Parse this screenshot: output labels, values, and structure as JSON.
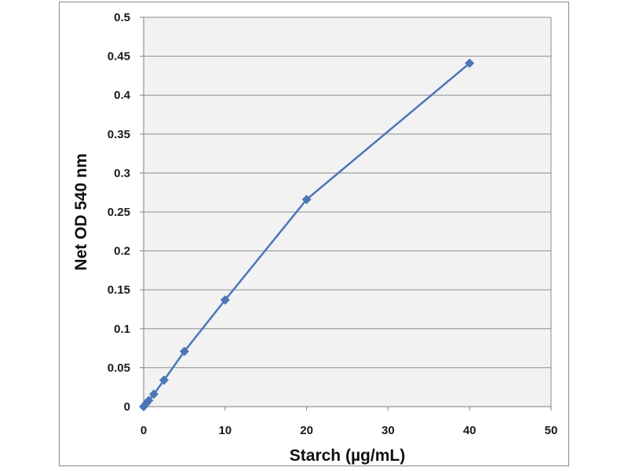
{
  "chart_data": {
    "type": "line",
    "title": "",
    "xlabel": "Starch (µg/mL)",
    "ylabel": "Net OD 540 nm",
    "xlim": [
      0,
      50
    ],
    "ylim": [
      0,
      0.5
    ],
    "x_ticks": [
      0,
      10,
      20,
      30,
      40,
      50
    ],
    "y_ticks": [
      0,
      0.05,
      0.1,
      0.15,
      0.2,
      0.25,
      0.3,
      0.35,
      0.4,
      0.45,
      0.5
    ],
    "x_tick_labels": [
      "0",
      "10",
      "20",
      "30",
      "40",
      "50"
    ],
    "y_tick_labels": [
      "0",
      "0.05",
      "0.1",
      "0.15",
      "0.2",
      "0.25",
      "0.3",
      "0.35",
      "0.4",
      "0.45",
      "0.5"
    ],
    "grid": "horizontal",
    "legend": "none",
    "series": [
      {
        "marker": "diamond",
        "color": "#4a76b8",
        "x": [
          0,
          0.3125,
          0.625,
          1.25,
          2.5,
          5,
          10,
          20,
          40
        ],
        "y": [
          0,
          0.004,
          0.008,
          0.016,
          0.034,
          0.071,
          0.137,
          0.266,
          0.441
        ]
      }
    ],
    "colors": {
      "plot_background": "#f2f2f2",
      "gridline": "#8c8c8c",
      "series": "#4a76b8"
    }
  }
}
